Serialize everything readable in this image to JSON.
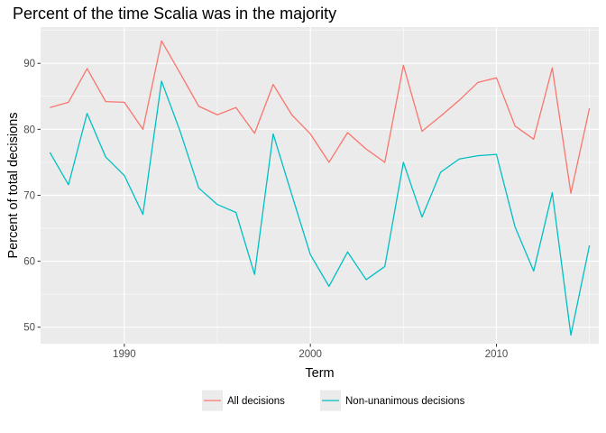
{
  "chart_data": {
    "type": "line",
    "title": "Percent of the time Scalia was in the majority",
    "xlabel": "Term",
    "ylabel": "Percent of total decisions",
    "xlim": [
      1985.5,
      2015.5
    ],
    "ylim": [
      47.5,
      95.5
    ],
    "x_ticks": [
      1990,
      2000,
      2010
    ],
    "y_ticks": [
      50,
      60,
      70,
      80,
      90
    ],
    "grid": true,
    "legend_position": "bottom",
    "x": [
      1986,
      1987,
      1988,
      1989,
      1990,
      1991,
      1992,
      1993,
      1994,
      1995,
      1996,
      1997,
      1998,
      1999,
      2000,
      2001,
      2002,
      2003,
      2004,
      2005,
      2006,
      2007,
      2008,
      2009,
      2010,
      2011,
      2012,
      2013,
      2014,
      2015
    ],
    "series": [
      {
        "name": "All decisions",
        "color": "#F8766D",
        "values": [
          83.3,
          84.1,
          89.2,
          84.2,
          84.1,
          80.0,
          93.4,
          88.5,
          83.5,
          82.2,
          83.3,
          79.4,
          86.8,
          82.2,
          79.3,
          75.0,
          79.5,
          77.0,
          75.0,
          89.7,
          79.7,
          82.0,
          84.4,
          87.1,
          87.8,
          80.5,
          78.5,
          89.3,
          70.3,
          83.2
        ]
      },
      {
        "name": "Non-unanimous decisions",
        "color": "#00BFC4",
        "values": [
          76.5,
          71.6,
          82.4,
          75.8,
          73.0,
          67.1,
          87.3,
          79.7,
          71.1,
          68.6,
          67.4,
          58.0,
          79.3,
          70.1,
          61.0,
          56.2,
          61.4,
          57.2,
          59.2,
          75.0,
          66.7,
          73.5,
          75.5,
          76.0,
          76.2,
          65.2,
          58.5,
          70.4,
          48.8,
          62.4
        ]
      }
    ]
  }
}
